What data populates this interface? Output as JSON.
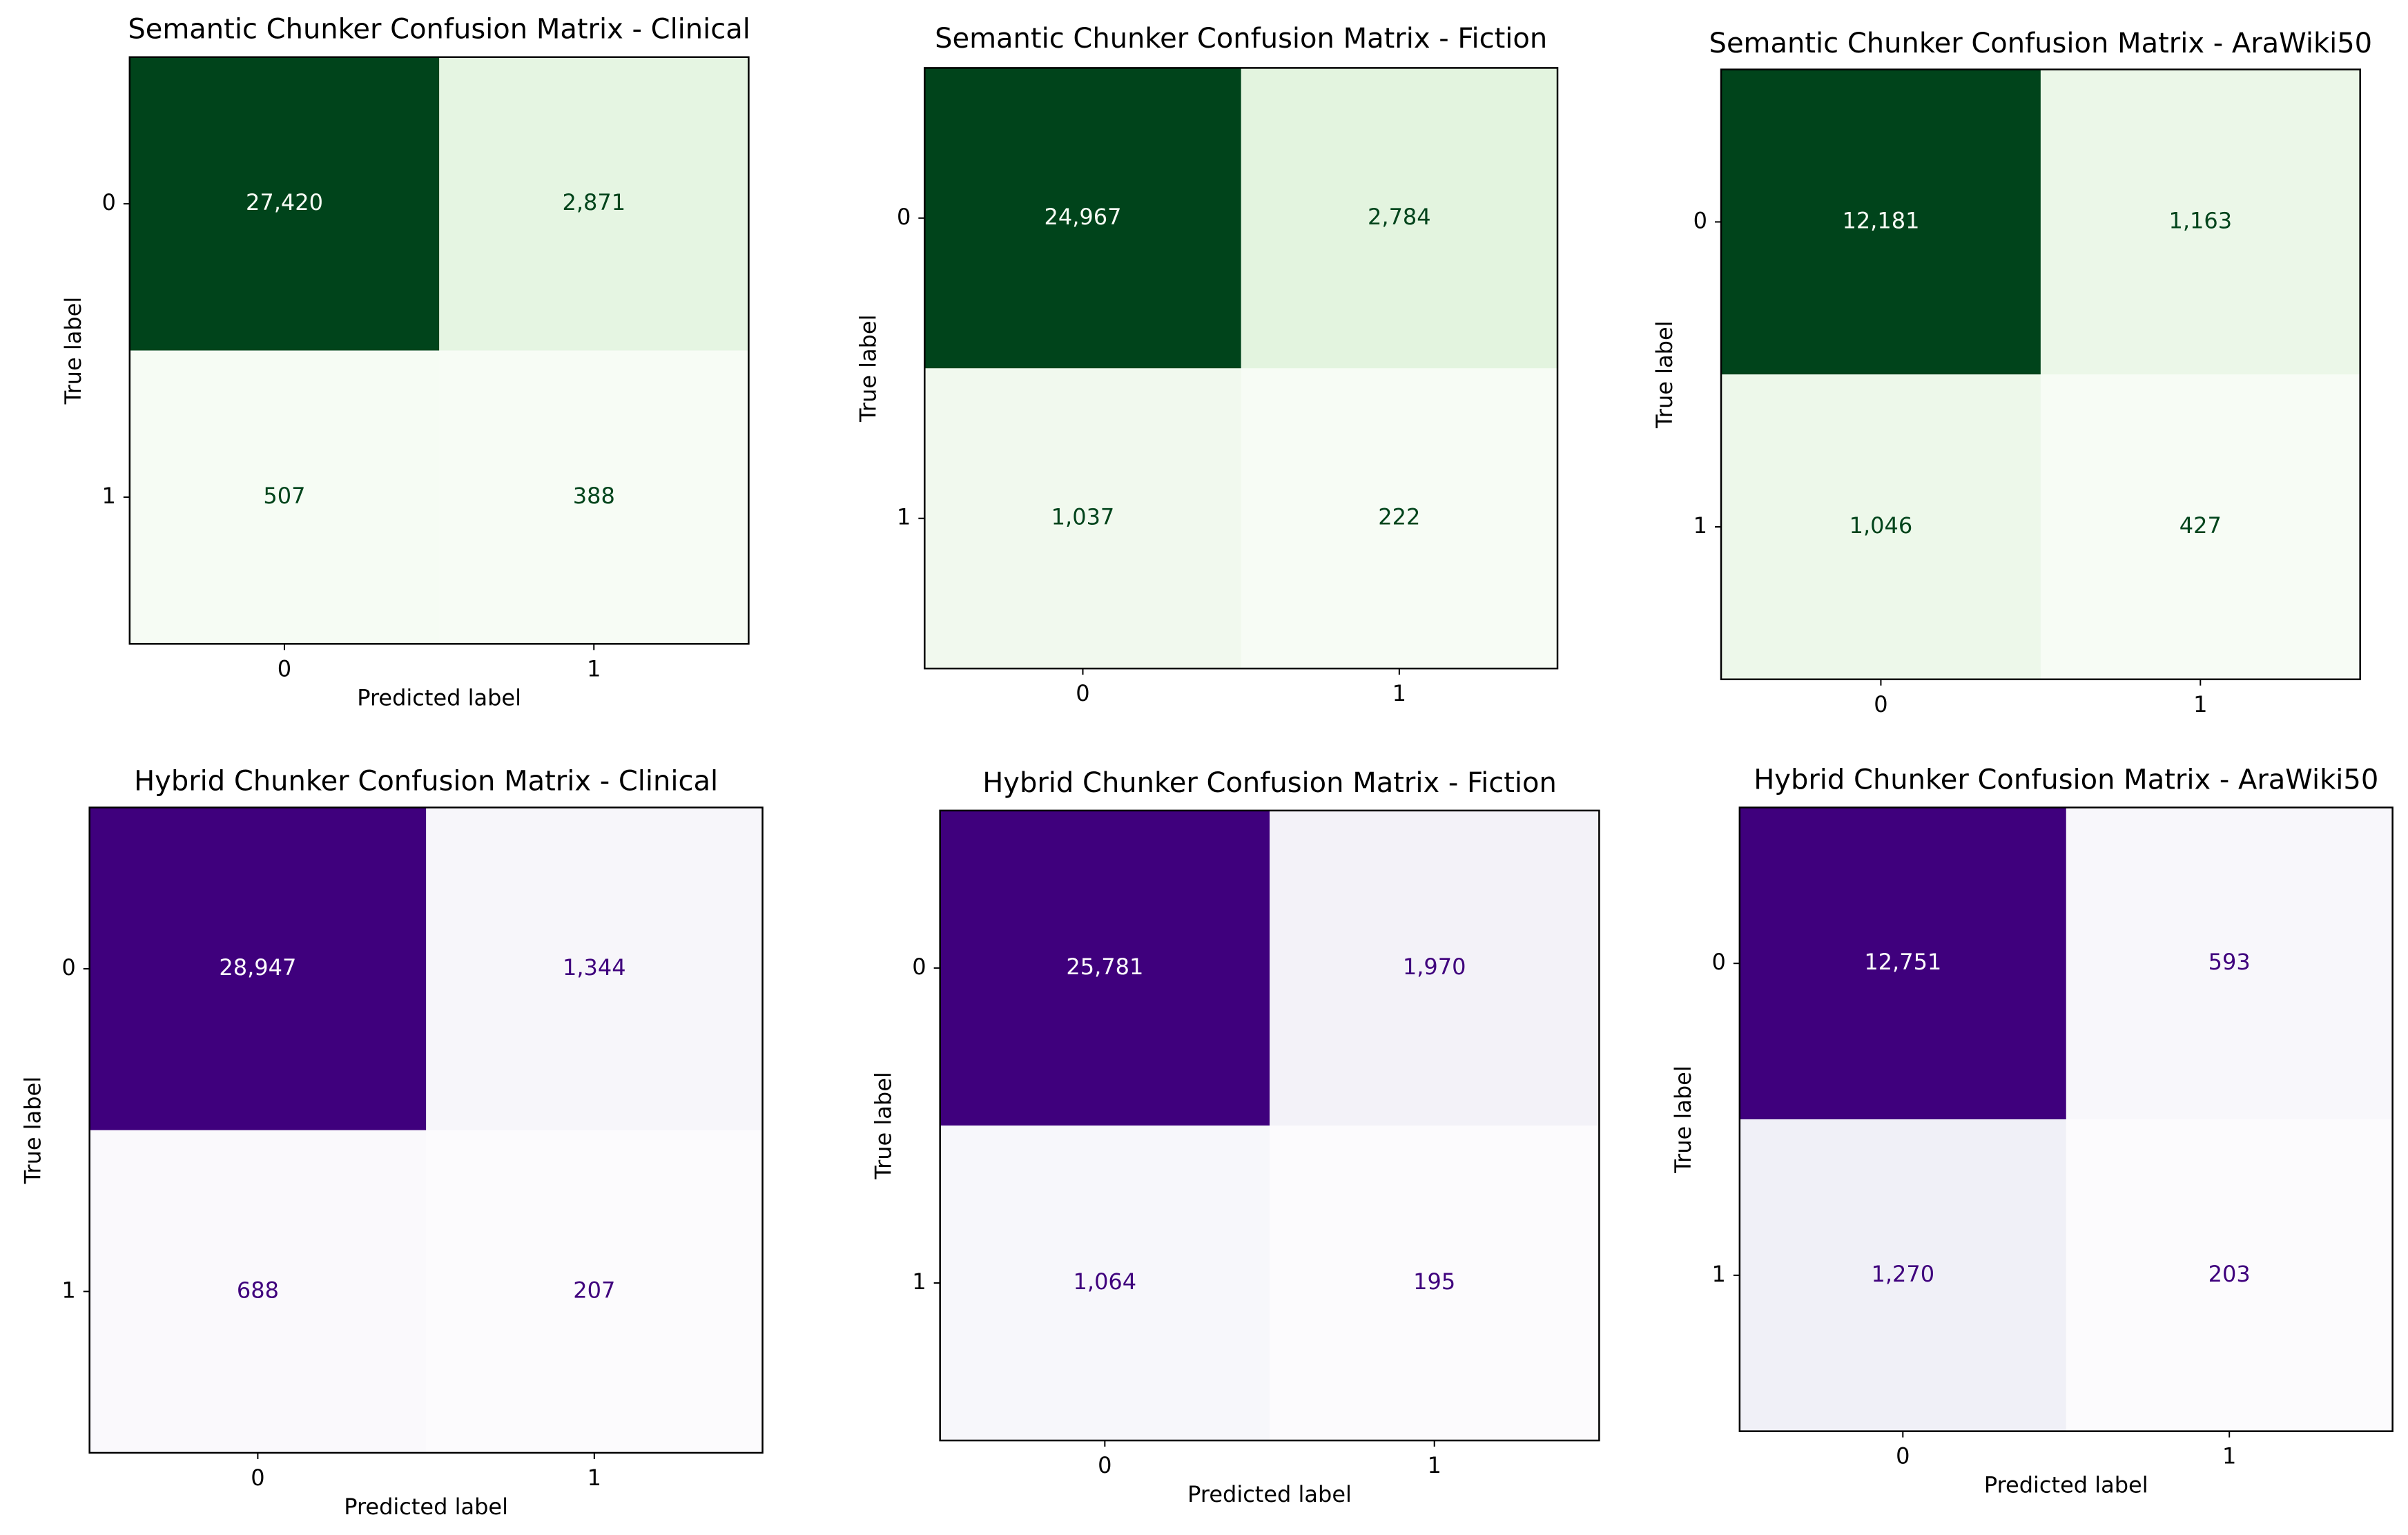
{
  "chart_data": [
    {
      "type": "heatmap",
      "title": "Semantic Chunker Confusion Matrix - Clinical",
      "x_label": "Predicted label",
      "y_label": "True label",
      "x_categories": [
        "0",
        "1"
      ],
      "y_categories": [
        "0",
        "1"
      ],
      "values": [
        [
          27420,
          2871
        ],
        [
          507,
          388
        ]
      ],
      "value_labels": [
        [
          "27,420",
          "2,871"
        ],
        [
          "507",
          "388"
        ]
      ],
      "colors": [
        "#f7fcf5",
        "#c7e9c0",
        "#74c476",
        "#238b45",
        "#00441b"
      ]
    },
    {
      "type": "heatmap",
      "title": "Semantic Chunker Confusion Matrix - Fiction",
      "y_label": "True label",
      "x_categories": [
        "0",
        "1"
      ],
      "y_categories": [
        "0",
        "1"
      ],
      "values": [
        [
          24967,
          2784
        ],
        [
          1037,
          222
        ]
      ],
      "value_labels": [
        [
          "24,967",
          "2,784"
        ],
        [
          "1,037",
          "222"
        ]
      ],
      "colors": [
        "#f7fcf5",
        "#c7e9c0",
        "#74c476",
        "#238b45",
        "#00441b"
      ]
    },
    {
      "type": "heatmap",
      "title": "Semantic Chunker Confusion Matrix - AraWiki50",
      "y_label": "True label",
      "x_categories": [
        "0",
        "1"
      ],
      "y_categories": [
        "0",
        "1"
      ],
      "values": [
        [
          12181,
          1163
        ],
        [
          1046,
          427
        ]
      ],
      "value_labels": [
        [
          "12,181",
          "1,163"
        ],
        [
          "1,046",
          "427"
        ]
      ],
      "colors": [
        "#f7fcf5",
        "#c7e9c0",
        "#74c476",
        "#238b45",
        "#00441b"
      ]
    },
    {
      "type": "heatmap",
      "title": "Hybrid Chunker Confusion Matrix - Clinical",
      "x_label": "Predicted label",
      "y_label": "True label",
      "x_categories": [
        "0",
        "1"
      ],
      "y_categories": [
        "0",
        "1"
      ],
      "values": [
        [
          28947,
          1344
        ],
        [
          688,
          207
        ]
      ],
      "value_labels": [
        [
          "28,947",
          "1,344"
        ],
        [
          "688",
          "207"
        ]
      ],
      "colors": [
        "#fcfbfd",
        "#dadaeb",
        "#9e9ac8",
        "#6a51a3",
        "#3f007d"
      ]
    },
    {
      "type": "heatmap",
      "title": "Hybrid Chunker Confusion Matrix - Fiction",
      "x_label": "Predicted label",
      "y_label": "True label",
      "x_categories": [
        "0",
        "1"
      ],
      "y_categories": [
        "0",
        "1"
      ],
      "values": [
        [
          25781,
          1970
        ],
        [
          1064,
          195
        ]
      ],
      "value_labels": [
        [
          "25,781",
          "1,970"
        ],
        [
          "1,064",
          "195"
        ]
      ],
      "colors": [
        "#fcfbfd",
        "#dadaeb",
        "#9e9ac8",
        "#6a51a3",
        "#3f007d"
      ]
    },
    {
      "type": "heatmap",
      "title": "Hybrid Chunker Confusion Matrix - AraWiki50",
      "x_label": "Predicted label",
      "y_label": "True label",
      "x_categories": [
        "0",
        "1"
      ],
      "y_categories": [
        "0",
        "1"
      ],
      "values": [
        [
          12751,
          593
        ],
        [
          1270,
          203
        ]
      ],
      "value_labels": [
        [
          "12,751",
          "593"
        ],
        [
          "1,270",
          "203"
        ]
      ],
      "colors": [
        "#fcfbfd",
        "#dadaeb",
        "#9e9ac8",
        "#6a51a3",
        "#3f007d"
      ]
    }
  ]
}
